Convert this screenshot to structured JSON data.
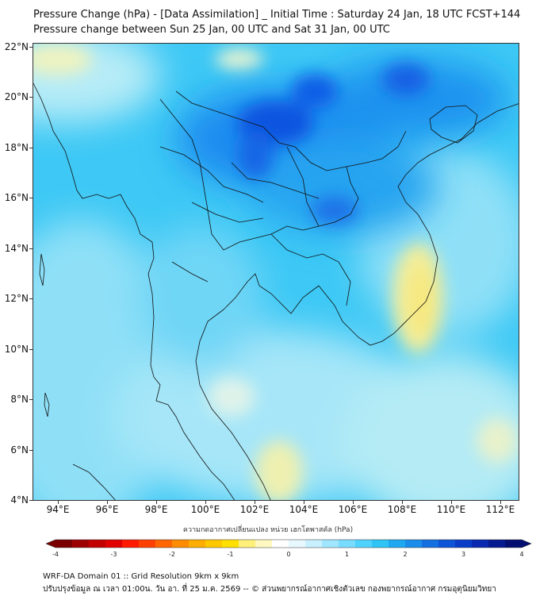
{
  "title_line1": "Pressure Change (hPa) - [Data Assimilation] _ Initial Time : Saturday 24 Jan, 18 UTC FCST+144",
  "title_line2": "Pressure change between Sun 25 Jan, 00 UTC and Sat 31 Jan, 00 UTC",
  "lat_ticks": [
    "22°N",
    "20°N",
    "18°N",
    "16°N",
    "14°N",
    "12°N",
    "10°N",
    "8°N",
    "6°N",
    "4°N"
  ],
  "lon_ticks": [
    "94°E",
    "96°E",
    "98°E",
    "100°E",
    "102°E",
    "104°E",
    "106°E",
    "108°E",
    "110°E",
    "112°E"
  ],
  "colorbar": {
    "label": "ความกดอากาศเปลี่ยนแปลง หน่วย เฮกโตพาสคัล (hPa)",
    "min": -4,
    "max": 4,
    "ticks": [
      "-4",
      "-3",
      "-2",
      "-1",
      "0",
      "1",
      "2",
      "3",
      "4"
    ]
  },
  "footer_line1": "WRF-DA Domain 01 :: Grid Resolution 9km x 9km",
  "footer_line2": "ปรับปรุงข้อมูล ณ เวลา 01:00น. วัน อา. ที่ 25 ม.ค. 2569 -- © ส่วนพยากรณ์อากาศเชิงตัวเลข กองพยากรณ์อากาศ กรมอุตุนิยมวิทยา"
}
